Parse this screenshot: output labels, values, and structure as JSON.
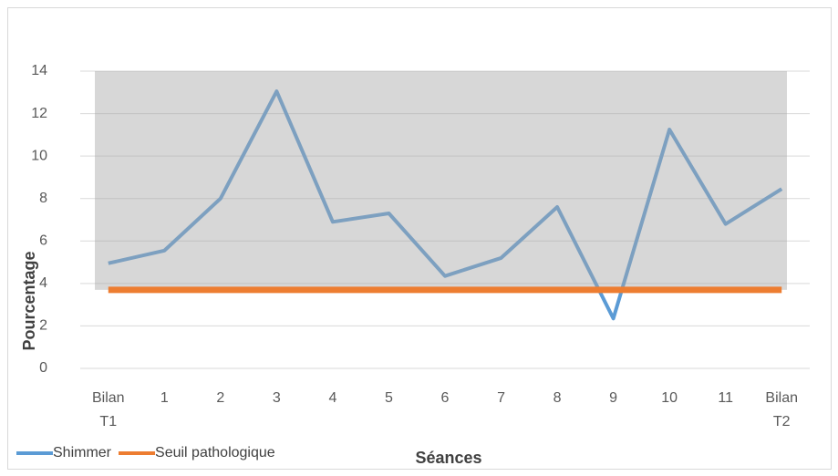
{
  "chart_data": {
    "type": "line",
    "categories": [
      "Bilan T1",
      "1",
      "2",
      "3",
      "4",
      "5",
      "6",
      "7",
      "8",
      "9",
      "10",
      "11",
      "Bilan T2"
    ],
    "series": [
      {
        "name": "Shimmer",
        "color": "#5b9bd5",
        "values": [
          4.95,
          5.55,
          8.0,
          13.05,
          6.9,
          7.3,
          4.35,
          5.2,
          7.6,
          2.35,
          11.25,
          6.8,
          8.45
        ]
      },
      {
        "name": "Seuil pathologique",
        "color": "#ed7d31",
        "values": [
          3.7,
          3.7,
          3.7,
          3.7,
          3.7,
          3.7,
          3.7,
          3.7,
          3.7,
          3.7,
          3.7,
          3.7,
          3.7
        ]
      }
    ],
    "x_label": "Séances",
    "y_label": "Pourcentage",
    "ylim": [
      0,
      14
    ],
    "yticks": [
      0,
      2,
      4,
      6,
      8,
      10,
      12,
      14
    ],
    "grid": true,
    "legend": "bottom-left"
  }
}
